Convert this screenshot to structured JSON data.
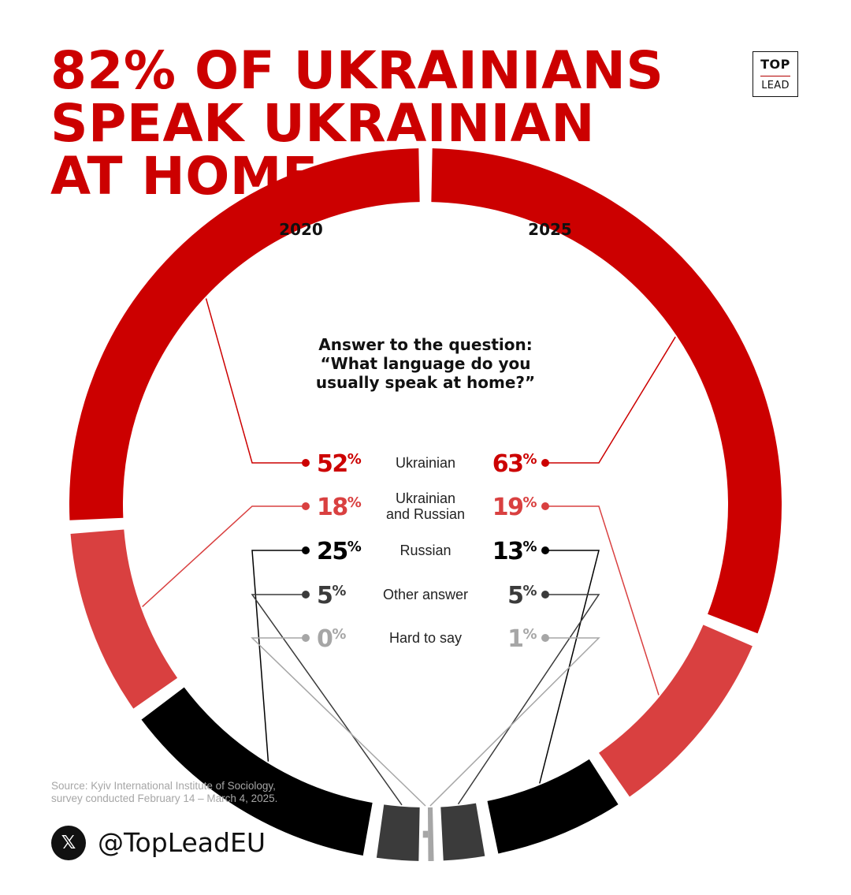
{
  "headline": {
    "lines": [
      "82% OF UKRAINIANS",
      "SPEAK UKRAINIAN",
      "AT HOME"
    ]
  },
  "logo": {
    "top": "TOP",
    "bottom": "LEAD"
  },
  "chart_data": {
    "type": "donut",
    "question": [
      "Answer to the question:",
      "“What language do you",
      "usually speak at home?”"
    ],
    "groups": [
      {
        "name": "2020",
        "values": [
          52,
          18,
          25,
          5,
          0
        ]
      },
      {
        "name": "2025",
        "values": [
          63,
          19,
          13,
          5,
          1
        ]
      }
    ],
    "categories": [
      {
        "lines": [
          "Ukrainian"
        ]
      },
      {
        "lines": [
          "Ukrainian",
          "and Russian"
        ]
      },
      {
        "lines": [
          "Russian"
        ]
      },
      {
        "lines": [
          "Other answer"
        ]
      },
      {
        "lines": [
          "Hard to say"
        ]
      }
    ],
    "percent_sign": "%",
    "colors": [
      "#cc0000",
      "#d94040",
      "#000000",
      "#3b3b3b",
      "#a6a6a6"
    ],
    "value_colors": [
      "#cc0000",
      "#d94040",
      "#000000",
      "#3b3b3b",
      "#a6a6a6"
    ]
  },
  "footer": {
    "source": [
      "Source: Kyiv International Institute of Sociology,",
      "survey conducted February 14 – March 4, 2025."
    ],
    "social_icon": "x-logo-icon",
    "social_glyph": "𝕏",
    "handle": "@TopLeadEU"
  }
}
